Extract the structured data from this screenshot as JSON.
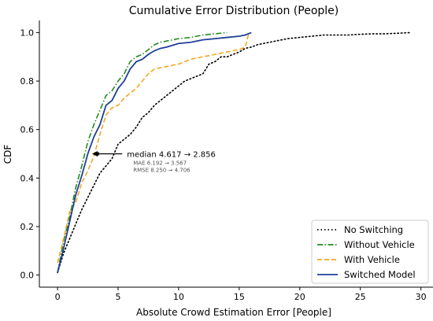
{
  "chart_data": {
    "type": "line",
    "title": "Cumulative Error Distribution (People)",
    "xlabel": "Absolute Crowd Estimation Error [People]",
    "ylabel": "CDF",
    "xlim": [
      -1.5,
      31
    ],
    "ylim": [
      -0.05,
      1.05
    ],
    "xticks": [
      0,
      5,
      10,
      15,
      20,
      25,
      30
    ],
    "yticks": [
      0.0,
      0.2,
      0.4,
      0.6,
      0.8,
      1.0
    ],
    "xtick_labels": [
      "0",
      "5",
      "10",
      "15",
      "20",
      "25",
      "30"
    ],
    "ytick_labels": [
      "0.0",
      "0.2",
      "0.4",
      "0.6",
      "0.8",
      "1.0"
    ],
    "grid": false,
    "legend_position": "bottom-right",
    "series": [
      {
        "name": "No Switching",
        "color": "#000000",
        "dash": "dotted",
        "x": [
          0,
          0.5,
          1,
          1.5,
          2,
          2.5,
          3,
          3.5,
          4,
          4.5,
          5,
          5.5,
          6,
          6.5,
          7,
          7.5,
          8,
          8.5,
          9,
          9.5,
          10,
          10.5,
          11,
          11.5,
          12,
          12.5,
          13,
          13.5,
          14,
          14.5,
          15,
          15.5,
          16,
          16.5,
          17,
          18,
          19,
          20,
          21,
          22,
          23,
          24,
          25,
          26,
          27,
          28,
          29.2
        ],
        "y": [
          0.01,
          0.09,
          0.15,
          0.21,
          0.27,
          0.32,
          0.37,
          0.42,
          0.45,
          0.48,
          0.54,
          0.56,
          0.58,
          0.61,
          0.65,
          0.67,
          0.7,
          0.72,
          0.74,
          0.76,
          0.78,
          0.8,
          0.81,
          0.82,
          0.83,
          0.87,
          0.88,
          0.9,
          0.9,
          0.91,
          0.92,
          0.935,
          0.94,
          0.95,
          0.955,
          0.965,
          0.975,
          0.98,
          0.985,
          0.99,
          0.99,
          0.99,
          0.993,
          0.995,
          0.995,
          0.997,
          1.0
        ]
      },
      {
        "name": "Without Vehicle",
        "color": "#228b22",
        "dash": "dashdot",
        "x": [
          0,
          0.5,
          1,
          1.5,
          2,
          2.5,
          3,
          3.5,
          4,
          4.5,
          5,
          5.5,
          6,
          6.5,
          7,
          7.5,
          8,
          8.5,
          9,
          9.5,
          10,
          11,
          12,
          13,
          14
        ],
        "y": [
          0.01,
          0.14,
          0.24,
          0.36,
          0.45,
          0.55,
          0.62,
          0.68,
          0.74,
          0.76,
          0.8,
          0.83,
          0.88,
          0.9,
          0.91,
          0.93,
          0.95,
          0.96,
          0.965,
          0.97,
          0.975,
          0.98,
          0.99,
          0.995,
          1.0
        ]
      },
      {
        "name": "With Vehicle",
        "color": "#f5a623",
        "dash": "dashed",
        "x": [
          0,
          0.5,
          1,
          1.5,
          2,
          2.5,
          3,
          3.5,
          4,
          4.5,
          5,
          5.5,
          6,
          6.5,
          7,
          7.5,
          8,
          9,
          10,
          10.5,
          11,
          12,
          13,
          14,
          15,
          15.5,
          15.8
        ],
        "y": [
          0.05,
          0.15,
          0.26,
          0.3,
          0.38,
          0.43,
          0.49,
          0.58,
          0.66,
          0.69,
          0.7,
          0.73,
          0.75,
          0.77,
          0.8,
          0.83,
          0.85,
          0.86,
          0.87,
          0.88,
          0.89,
          0.9,
          0.91,
          0.92,
          0.93,
          0.94,
          1.0
        ]
      },
      {
        "name": "Switched Model",
        "color": "#1f3f99",
        "dash": "solid",
        "x": [
          0,
          0.5,
          1,
          1.5,
          2,
          2.5,
          3,
          3.5,
          4,
          4.5,
          5,
          5.5,
          6,
          6.5,
          7,
          7.5,
          8,
          8.5,
          9,
          10,
          11,
          12,
          13,
          14,
          15,
          15.5,
          16
        ],
        "y": [
          0.01,
          0.11,
          0.22,
          0.33,
          0.41,
          0.5,
          0.57,
          0.62,
          0.7,
          0.72,
          0.77,
          0.8,
          0.85,
          0.88,
          0.89,
          0.91,
          0.925,
          0.935,
          0.94,
          0.955,
          0.96,
          0.97,
          0.975,
          0.98,
          0.985,
          0.99,
          1.0
        ]
      }
    ],
    "annotation": {
      "main": "median 4.617 → 2.856",
      "mae": "MAE   6.192 → 3.567",
      "rmse": "RMSE 8.250 → 4.706",
      "arrow_from": [
        4.617,
        0.5
      ],
      "arrow_to": [
        2.856,
        0.5
      ],
      "text_anchor_at": [
        5.6,
        0.5
      ]
    }
  }
}
